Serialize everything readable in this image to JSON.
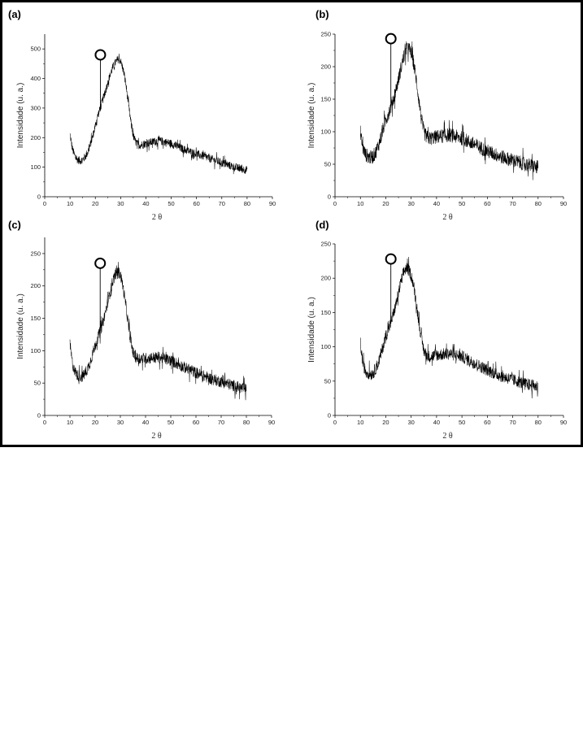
{
  "chart_data": [
    {
      "panel": "(a)",
      "type": "line",
      "xlabel": "2 θ",
      "ylabel": "Intensidade (u. a.)",
      "xlim": [
        0,
        90
      ],
      "ylim": [
        0,
        550
      ],
      "xticks": [
        "0",
        "10",
        "20",
        "30",
        "40",
        "50",
        "60",
        "70",
        "80",
        "90"
      ],
      "yticks": [
        "0",
        "100",
        "200",
        "300",
        "400",
        "500"
      ],
      "marker": {
        "x": 22,
        "y": 480,
        "shape": "circle"
      },
      "series": [
        {
          "x": [
            10,
            11,
            12,
            13,
            14,
            15,
            16,
            17,
            18,
            19,
            20,
            21,
            22,
            23,
            24,
            25,
            26,
            27,
            28,
            29,
            30,
            31,
            32,
            33,
            34,
            35,
            36,
            37,
            38,
            40,
            45,
            50,
            55,
            60,
            65,
            70,
            75,
            80
          ],
          "values": [
            210,
            160,
            135,
            125,
            122,
            125,
            135,
            150,
            175,
            205,
            240,
            275,
            300,
            330,
            355,
            390,
            415,
            440,
            455,
            465,
            460,
            430,
            385,
            320,
            255,
            205,
            185,
            175,
            175,
            180,
            190,
            180,
            160,
            145,
            130,
            115,
            100,
            90
          ]
        }
      ],
      "noise": 14
    },
    {
      "panel": "(b)",
      "type": "line",
      "xlabel": "2 θ",
      "ylabel": "Intensidade (u. a.)",
      "xlim": [
        0,
        90
      ],
      "ylim": [
        0,
        250
      ],
      "xticks": [
        "0",
        "10",
        "20",
        "30",
        "40",
        "50",
        "60",
        "70",
        "80",
        "90"
      ],
      "yticks": [
        "0",
        "50",
        "100",
        "150",
        "200",
        "250"
      ],
      "marker": {
        "x": 22,
        "y": 243,
        "shape": "circle"
      },
      "series": [
        {
          "x": [
            10,
            11,
            12,
            13,
            14,
            15,
            16,
            17,
            18,
            19,
            20,
            21,
            22,
            23,
            24,
            25,
            26,
            27,
            28,
            29,
            30,
            31,
            32,
            33,
            34,
            35,
            36,
            37,
            38,
            40,
            45,
            50,
            55,
            60,
            65,
            70,
            75,
            80
          ],
          "values": [
            100,
            75,
            65,
            62,
            60,
            62,
            68,
            78,
            90,
            105,
            118,
            128,
            138,
            150,
            165,
            180,
            198,
            215,
            225,
            228,
            222,
            205,
            180,
            150,
            120,
            100,
            92,
            90,
            90,
            92,
            95,
            90,
            80,
            70,
            62,
            56,
            50,
            45
          ]
        }
      ],
      "noise": 11
    },
    {
      "panel": "(c)",
      "type": "line",
      "xlabel": "2 θ",
      "ylabel": "Intensidade (u. a.)",
      "xlim": [
        0,
        90
      ],
      "ylim": [
        0,
        275
      ],
      "xticks": [
        "0",
        "10",
        "20",
        "30",
        "40",
        "50",
        "60",
        "70",
        "80",
        "90"
      ],
      "yticks": [
        "0",
        "50",
        "100",
        "150",
        "200",
        "250"
      ],
      "marker": {
        "x": 22,
        "y": 235,
        "shape": "circle"
      },
      "series": [
        {
          "x": [
            10,
            11,
            12,
            13,
            14,
            15,
            16,
            17,
            18,
            19,
            20,
            21,
            22,
            23,
            24,
            25,
            26,
            27,
            28,
            29,
            30,
            31,
            32,
            33,
            34,
            35,
            36,
            37,
            38,
            40,
            45,
            50,
            55,
            60,
            65,
            70,
            75,
            80
          ],
          "values": [
            110,
            80,
            68,
            62,
            60,
            60,
            65,
            72,
            82,
            95,
            108,
            120,
            130,
            142,
            158,
            175,
            192,
            208,
            218,
            222,
            218,
            200,
            175,
            145,
            118,
            98,
            90,
            88,
            88,
            88,
            90,
            85,
            75,
            66,
            58,
            52,
            46,
            40
          ]
        }
      ],
      "noise": 9
    },
    {
      "panel": "(d)",
      "type": "line",
      "xlabel": "2 θ",
      "ylabel": "Intensidade (u. a.)",
      "xlim": [
        0,
        90
      ],
      "ylim": [
        0,
        250
      ],
      "xticks": [
        "0",
        "10",
        "20",
        "30",
        "40",
        "50",
        "60",
        "70",
        "80",
        "90"
      ],
      "yticks": [
        "0",
        "50",
        "100",
        "150",
        "200",
        "250"
      ],
      "marker": {
        "x": 22,
        "y": 228,
        "shape": "circle"
      },
      "series": [
        {
          "x": [
            10,
            11,
            12,
            13,
            14,
            15,
            16,
            17,
            18,
            19,
            20,
            21,
            22,
            23,
            24,
            25,
            26,
            27,
            28,
            29,
            30,
            31,
            32,
            33,
            34,
            35,
            36,
            37,
            38,
            40,
            45,
            50,
            55,
            60,
            65,
            70,
            75,
            80
          ],
          "values": [
            105,
            75,
            65,
            62,
            60,
            62,
            68,
            76,
            88,
            102,
            115,
            125,
            135,
            148,
            162,
            178,
            195,
            208,
            215,
            212,
            205,
            188,
            165,
            138,
            112,
            95,
            88,
            86,
            86,
            88,
            90,
            86,
            76,
            66,
            58,
            52,
            46,
            42
          ]
        }
      ],
      "noise": 9
    }
  ]
}
